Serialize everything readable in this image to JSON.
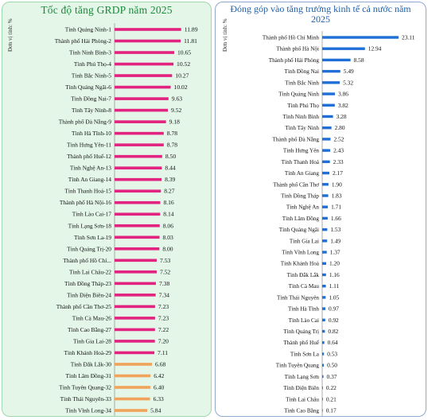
{
  "chart_data": [
    {
      "type": "bar",
      "orientation": "horizontal",
      "title": "Tốc độ tăng GRDP năm 2025",
      "ylabel": "Đơn vị tính: %",
      "xlim": [
        0,
        12.5
      ],
      "grid": false,
      "colors": {
        "top": "#e2237f",
        "bottom": "#f0a35a",
        "background": "#e3f6e8",
        "title": "#1a8a3a"
      },
      "categories": [
        "Tỉnh Quảng Ninh-1",
        "Thành phố Hải Phòng-2",
        "Tỉnh Ninh Bình-3",
        "Tỉnh Phú Thọ-4",
        "Tỉnh Bắc Ninh-5",
        "Tỉnh Quảng Ngãi-6",
        "Tỉnh Đồng Nai-7",
        "Tỉnh Tây Ninh-8",
        "Thành phố Đà Nẵng-9",
        "Tỉnh Hà Tĩnh-10",
        "Tỉnh Hưng Yên-11",
        "Thành phố Huế-12",
        "Tỉnh Nghệ An-13",
        "Tỉnh An Giang-14",
        "Tỉnh Thanh Hoá-15",
        "Thành phố Hà Nội-16",
        "Tỉnh Lào Cai-17",
        "Tỉnh Lạng Sơn-18",
        "Tỉnh Sơn La-19",
        "Tỉnh Quảng Trị-20",
        "Thành phố Hồ Chí...",
        "Tỉnh Lai Châu-22",
        "Tỉnh Đồng Tháp-23",
        "Tỉnh Điện Biên-24",
        "Thành phố Cần Thơ-25",
        "Tỉnh Cà Mau-26",
        "Tỉnh Cao Bằng-27",
        "Tỉnh Gia Lai-28",
        "Tỉnh Khánh Hoà-29",
        "Tỉnh Đắk Lắk-30",
        "Tỉnh Lâm Đồng-31",
        "Tỉnh Tuyên Quang-32",
        "Tỉnh Thái Nguyên-33",
        "Tỉnh Vĩnh Long-34"
      ],
      "value_labels": [
        "11.89",
        "11.81",
        "10.65",
        "10.52",
        "10.27",
        "10.02",
        "9.63",
        "9.52",
        "9.18",
        "8.78",
        "8.78",
        "8.50",
        "8.44",
        "8.39",
        "8.27",
        "8.16",
        "8.14",
        "8.06",
        "8.03",
        "8.00",
        "7.53",
        "7.52",
        "7.38",
        "7.34",
        "7.23",
        "7.23",
        "7.22",
        "7.20",
        "7.11",
        "6.68",
        "6.42",
        "6.40",
        "6.33",
        "5.84"
      ],
      "values": [
        11.89,
        11.81,
        10.65,
        10.52,
        10.27,
        10.02,
        9.63,
        9.52,
        9.18,
        8.78,
        8.78,
        8.5,
        8.44,
        8.39,
        8.27,
        8.16,
        8.14,
        8.06,
        8.03,
        8.0,
        7.53,
        7.52,
        7.38,
        7.34,
        7.23,
        7.23,
        7.22,
        7.2,
        7.11,
        6.68,
        6.42,
        6.4,
        6.33,
        5.84
      ]
    },
    {
      "type": "bar",
      "orientation": "horizontal",
      "title": "Đóng góp vào tăng trưởng kinh tế cả nước năm 2025",
      "ylabel": "Đơn vị tính: %",
      "xlim": [
        0,
        23.11
      ],
      "grid": false,
      "colors": {
        "bar": "#1f6fd6",
        "title": "#1f5fa8"
      },
      "categories": [
        "Thành phố Hồ Chí Minh",
        "Thành phố Hà Nội",
        "Thành phố Hải Phòng",
        "Tỉnh Đồng Nai",
        "Tỉnh Bắc Ninh",
        "Tỉnh Quảng Ninh",
        "Tỉnh Phú Thọ",
        "Tỉnh Ninh Bình",
        "Tỉnh Tây Ninh",
        "Thành phố Đà Nẵng",
        "Tỉnh Hưng Yên",
        "Tỉnh Thanh Hoá",
        "Tỉnh An Giang",
        "Thành phố Cần Thơ",
        "Tỉnh Đồng Tháp",
        "Tỉnh Nghệ An",
        "Tỉnh Lâm Đồng",
        "Tỉnh Quảng Ngãi",
        "Tỉnh Gia Lai",
        "Tỉnh Vĩnh Long",
        "Tỉnh Khánh Hoà",
        "Tỉnh Đắk Lắk",
        "Tỉnh Cà Mau",
        "Tỉnh Thái Nguyên",
        "Tỉnh Hà Tĩnh",
        "Tỉnh Lào Cai",
        "Tỉnh Quảng Trị",
        "Thành phố Huế",
        "Tỉnh Sơn La",
        "Tỉnh Tuyên Quang",
        "Tỉnh Lạng Sơn",
        "Tỉnh Điện Biên",
        "Tỉnh Lai Châu",
        "Tỉnh Cao Bằng"
      ],
      "value_labels": [
        "23.11",
        "12.94",
        "8.58",
        "5.49",
        "5.32",
        "3.86",
        "3.82",
        "3.28",
        "2.80",
        "2.52",
        "2.43",
        "2.33",
        "2.17",
        "1.90",
        "1.83",
        "1.71",
        "1.66",
        "1.53",
        "1.49",
        "1.37",
        "1.20",
        "1.16",
        "1.11",
        "1.05",
        "0.97",
        "0.92",
        "0.82",
        "0.64",
        "0.53",
        "0.50",
        "0.37",
        "0.22",
        "0.21",
        "0.17"
      ],
      "values": [
        23.11,
        12.94,
        8.58,
        5.49,
        5.32,
        3.86,
        3.82,
        3.28,
        2.8,
        2.52,
        2.43,
        2.33,
        2.17,
        1.9,
        1.83,
        1.71,
        1.66,
        1.53,
        1.49,
        1.37,
        1.2,
        1.16,
        1.11,
        1.05,
        0.97,
        0.92,
        0.82,
        0.64,
        0.53,
        0.5,
        0.37,
        0.22,
        0.21,
        0.17
      ]
    }
  ]
}
